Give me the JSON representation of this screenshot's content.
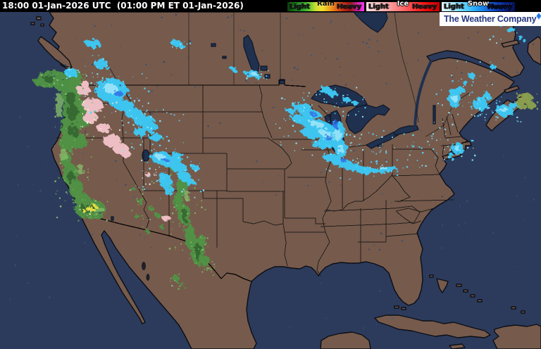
{
  "header": {
    "utc": "18:00 01-Jan-2026 UTC ",
    "local": " (01:00 PM ET 01-Jan-2026)"
  },
  "legend": {
    "rain": {
      "title": "Rain",
      "light": "Light",
      "heavy": "Heavy",
      "colors": [
        "#0b3e0b",
        "#177017",
        "#259c25",
        "#52c433",
        "#c8dc32",
        "#f2e02e",
        "#f0a41c",
        "#e0641a",
        "#c62814",
        "#941414",
        "#cc1c9c",
        "#f838f8"
      ]
    },
    "ice": {
      "title": "Ice",
      "light": "Light",
      "heavy": "Heavy",
      "colors": [
        "#ffe2e2",
        "#ffc8c8",
        "#ffa8a8",
        "#ff8080",
        "#ff5454",
        "#ff2626",
        "#ea0404",
        "#c00000"
      ]
    },
    "snow": {
      "title": "Snow",
      "light": "Light",
      "heavy": "Heavy",
      "colors": [
        "#e6faff",
        "#b8eeff",
        "#7cdcff",
        "#44c4ff",
        "#1f9cf4",
        "#1668dc",
        "#0c3cb4",
        "#071f86",
        "#041254"
      ]
    }
  },
  "branding": {
    "company": "The Weather Company"
  },
  "palette": {
    "land": "#765b4c",
    "water": "#2c3a5c",
    "lakes": "#20304f",
    "border": "#141414",
    "rain_green": "#4f9444",
    "rain_dark": "#2e6130",
    "rain_light": "#86c06a",
    "rain_heavy_yellow": "#e8e23c",
    "ice_pink": "#f4c4cb",
    "snow_cyan": "#3cc9f5",
    "snow_light": "#9feaff",
    "snow_deep": "#2f66e8"
  }
}
